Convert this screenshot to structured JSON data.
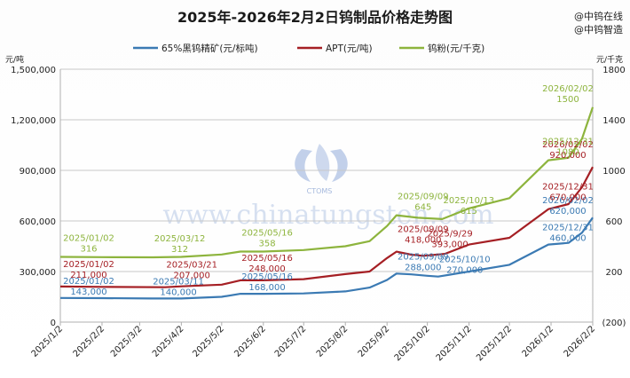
{
  "title": "2025年-2026年2月2日钨制品价格走势图",
  "brand": [
    "@中钨在线",
    "@中钨智造"
  ],
  "watermark": {
    "text": "www.chinatungsten.com",
    "logo_text": "CTOMS"
  },
  "chart_data": {
    "type": "line",
    "title": "2025年-2026年2月2日钨制品价格走势图",
    "y_left": {
      "unit": "元/吨",
      "min": 0,
      "max": 1500000,
      "ticks": [
        0,
        300000,
        600000,
        900000,
        1200000,
        1500000
      ],
      "tick_labels": [
        "0",
        "300,000",
        "600,000",
        "900,000",
        "1,200,000",
        "1,500,000"
      ]
    },
    "y_right": {
      "unit": "元/千克",
      "min": -200,
      "max": 1800,
      "ticks": [
        -200,
        200,
        600,
        1000,
        1400,
        1800
      ],
      "tick_labels": [
        "(200)",
        "200",
        "600",
        "1000",
        "1400",
        "1800"
      ]
    },
    "x_labels": [
      "2025/1/2",
      "2025/2/2",
      "2025/3/2",
      "2025/4/2",
      "2025/5/2",
      "2025/6/2",
      "2025/7/2",
      "2025/8/2",
      "2025/9/2",
      "2025/10/2",
      "2025/11/2",
      "2025/12/2",
      "2026/1/2",
      "2026/2/2"
    ],
    "grid": "horizontal",
    "legend_position": "top",
    "series": [
      {
        "name": "65%黑钨精矿(元/标吨)",
        "axis": "left",
        "color": "#3b7ab3",
        "points": [
          [
            "2025/1/2",
            143000
          ],
          [
            "2025/2/2",
            142000
          ],
          [
            "2025/3/11",
            140000
          ],
          [
            "2025/4/2",
            140000
          ],
          [
            "2025/5/2",
            150000
          ],
          [
            "2025/5/16",
            168000
          ],
          [
            "2025/6/2",
            168000
          ],
          [
            "2025/7/2",
            170000
          ],
          [
            "2025/8/2",
            182000
          ],
          [
            "2025/8/20",
            205000
          ],
          [
            "2025/9/2",
            250000
          ],
          [
            "2025/9/9",
            288000
          ],
          [
            "2025/9/20",
            283000
          ],
          [
            "2025/10/2",
            275000
          ],
          [
            "2025/10/10",
            270000
          ],
          [
            "2025/11/2",
            300000
          ],
          [
            "2025/12/2",
            340000
          ],
          [
            "2025/12/31",
            460000
          ],
          [
            "2026/1/15",
            470000
          ],
          [
            "2026/1/25",
            530000
          ],
          [
            "2026/2/2",
            620000
          ]
        ]
      },
      {
        "name": "APT(元/吨)",
        "axis": "left",
        "color": "#a51f24",
        "points": [
          [
            "2025/1/2",
            211000
          ],
          [
            "2025/2/2",
            209000
          ],
          [
            "2025/3/21",
            207000
          ],
          [
            "2025/4/2",
            212000
          ],
          [
            "2025/5/2",
            222000
          ],
          [
            "2025/5/16",
            248000
          ],
          [
            "2025/6/2",
            248000
          ],
          [
            "2025/7/2",
            255000
          ],
          [
            "2025/8/2",
            285000
          ],
          [
            "2025/8/20",
            300000
          ],
          [
            "2025/9/2",
            380000
          ],
          [
            "2025/9/9",
            418000
          ],
          [
            "2025/9/20",
            400000
          ],
          [
            "2025/9/29",
            393000
          ],
          [
            "2025/10/15",
            405000
          ],
          [
            "2025/11/2",
            460000
          ],
          [
            "2025/12/2",
            500000
          ],
          [
            "2025/12/31",
            670000
          ],
          [
            "2026/1/15",
            700000
          ],
          [
            "2026/1/25",
            800000
          ],
          [
            "2026/2/2",
            920000
          ]
        ]
      },
      {
        "name": "钨粉(元/千克)",
        "axis": "right",
        "color": "#8db43d",
        "points": [
          [
            "2025/1/2",
            316
          ],
          [
            "2025/2/2",
            314
          ],
          [
            "2025/3/12",
            312
          ],
          [
            "2025/4/2",
            316
          ],
          [
            "2025/5/2",
            335
          ],
          [
            "2025/5/16",
            358
          ],
          [
            "2025/6/2",
            358
          ],
          [
            "2025/7/2",
            370
          ],
          [
            "2025/8/2",
            400
          ],
          [
            "2025/8/20",
            440
          ],
          [
            "2025/9/2",
            560
          ],
          [
            "2025/9/9",
            645
          ],
          [
            "2025/9/25",
            625
          ],
          [
            "2025/10/13",
            615
          ],
          [
            "2025/11/2",
            700
          ],
          [
            "2025/12/2",
            780
          ],
          [
            "2025/12/31",
            1080
          ],
          [
            "2026/1/15",
            1100
          ],
          [
            "2026/1/25",
            1250
          ],
          [
            "2026/2/2",
            1500
          ]
        ]
      }
    ],
    "annotations": [
      {
        "series": 0,
        "x": "2025/1/2",
        "lines": [
          "2025/01/02",
          "143,000"
        ]
      },
      {
        "series": 0,
        "x": "2025/3/11",
        "lines": [
          "2025/03/11",
          "140,000"
        ]
      },
      {
        "series": 0,
        "x": "2025/5/16",
        "lines": [
          "2025/05/16",
          "168,000"
        ]
      },
      {
        "series": 0,
        "x": "2025/9/9",
        "lines": [
          "2025/09/09",
          "288,000"
        ]
      },
      {
        "series": 0,
        "x": "2025/10/10",
        "lines": [
          "2025/10/10",
          "270,000"
        ]
      },
      {
        "series": 0,
        "x": "2025/12/31",
        "lines": [
          "2025/12/31",
          "460,000"
        ]
      },
      {
        "series": 0,
        "x": "2026/2/2",
        "lines": [
          "2026/02/02",
          "620,000"
        ]
      },
      {
        "series": 1,
        "x": "2025/1/2",
        "lines": [
          "2025/01/02",
          "211,000"
        ]
      },
      {
        "series": 1,
        "x": "2025/3/21",
        "lines": [
          "2025/03/21",
          "207,000"
        ]
      },
      {
        "series": 1,
        "x": "2025/5/16",
        "lines": [
          "2025/05/16",
          "248,000"
        ]
      },
      {
        "series": 1,
        "x": "2025/9/9",
        "lines": [
          "2025/09/09",
          "418,000"
        ]
      },
      {
        "series": 1,
        "x": "2025/9/29",
        "lines": [
          "2025/9/29",
          "393,000"
        ]
      },
      {
        "series": 1,
        "x": "2025/12/31",
        "lines": [
          "2025/12/31",
          "670,000"
        ]
      },
      {
        "series": 1,
        "x": "2026/2/2",
        "lines": [
          "2026/02/02",
          "920,000"
        ]
      },
      {
        "series": 2,
        "x": "2025/1/2",
        "lines": [
          "2025/01/02",
          "316"
        ]
      },
      {
        "series": 2,
        "x": "2025/3/12",
        "lines": [
          "2025/03/12",
          "312"
        ]
      },
      {
        "series": 2,
        "x": "2025/5/16",
        "lines": [
          "2025/05/16",
          "358"
        ]
      },
      {
        "series": 2,
        "x": "2025/9/9",
        "lines": [
          "2025/09/09",
          "645"
        ]
      },
      {
        "series": 2,
        "x": "2025/10/13",
        "lines": [
          "2025/10/13",
          "615"
        ]
      },
      {
        "series": 2,
        "x": "2025/12/31",
        "lines": [
          "2025/12/31",
          "1080"
        ]
      },
      {
        "series": 2,
        "x": "2026/2/2",
        "lines": [
          "2026/02/02",
          "1500"
        ]
      }
    ]
  }
}
